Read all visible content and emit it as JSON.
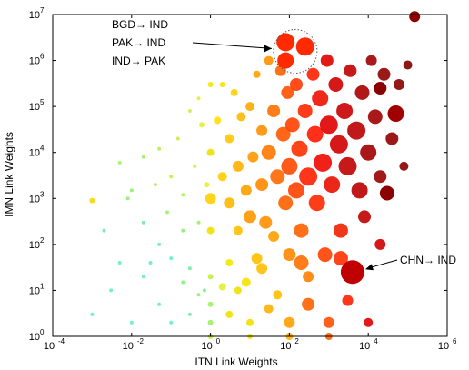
{
  "chart_data": {
    "type": "scatter",
    "xlabel": "ITN Link Weights",
    "ylabel": "IMN Link Weights",
    "xscale": "log",
    "yscale": "log",
    "xlim": [
      0.0001,
      1000000
    ],
    "ylim": [
      1,
      10000000
    ],
    "grid": false,
    "x_ticks": [
      {
        "exp": -4,
        "label": "10",
        "sup": "-4"
      },
      {
        "exp": -2,
        "label": "10",
        "sup": "-2"
      },
      {
        "exp": 0,
        "label": "10",
        "sup": "0"
      },
      {
        "exp": 2,
        "label": "10",
        "sup": "2"
      },
      {
        "exp": 4,
        "label": "10",
        "sup": "4"
      },
      {
        "exp": 6,
        "label": "10",
        "sup": "6"
      }
    ],
    "y_ticks": [
      {
        "exp": 0,
        "label": "10",
        "sup": "0"
      },
      {
        "exp": 1,
        "label": "10",
        "sup": "1"
      },
      {
        "exp": 2,
        "label": "10",
        "sup": "2"
      },
      {
        "exp": 3,
        "label": "10",
        "sup": "3"
      },
      {
        "exp": 4,
        "label": "10",
        "sup": "4"
      },
      {
        "exp": 5,
        "label": "10",
        "sup": "5"
      },
      {
        "exp": 6,
        "label": "10",
        "sup": "6"
      },
      {
        "exp": 7,
        "label": "10",
        "sup": "7"
      }
    ],
    "annotations": [
      {
        "label": "BGD→ IND",
        "x": 80,
        "y": 2500000
      },
      {
        "label": "PAK→ IND",
        "x": 250,
        "y": 2000000
      },
      {
        "label": "IND→ PAK",
        "x": 80,
        "y": 1000000
      },
      {
        "label": "CHN→ IND",
        "x": 4000,
        "y": 25
      }
    ],
    "highlighted_points": [
      {
        "x": 80,
        "y": 2500000,
        "size": 10,
        "color": "#ff2a00"
      },
      {
        "x": 250,
        "y": 2000000,
        "size": 10,
        "color": "#ff2a00"
      },
      {
        "x": 80,
        "y": 1000000,
        "size": 9,
        "color": "#ff2a00"
      },
      {
        "x": 4000,
        "y": 25,
        "size": 13,
        "color": "#c00000"
      },
      {
        "x": 150000,
        "y": 9000000,
        "size": 6,
        "color": "#8b0000"
      },
      {
        "x": 30000,
        "y": 1300,
        "size": 8,
        "color": "#8b0000"
      },
      {
        "x": 50000,
        "y": 70000,
        "size": 9,
        "color": "#a00000"
      },
      {
        "x": 20000,
        "y": 250000,
        "size": 7,
        "color": "#8b0000"
      }
    ],
    "scatter_points": [
      [
        0.001,
        900,
        3,
        "#ffd400"
      ],
      [
        0.005,
        6000,
        2,
        "#a8f060"
      ],
      [
        0.01,
        1500,
        2,
        "#90f070"
      ],
      [
        0.02,
        300,
        2,
        "#70f0a0"
      ],
      [
        0.02,
        8000,
        2,
        "#9ef060"
      ],
      [
        0.03,
        40,
        2,
        "#60f0c0"
      ],
      [
        0.04,
        2000,
        2,
        "#b0f050"
      ],
      [
        0.05,
        100,
        2,
        "#70f0a0"
      ],
      [
        0.05,
        12000,
        2,
        "#b0f050"
      ],
      [
        0.08,
        500,
        2,
        "#a0f060"
      ],
      [
        0.1,
        50,
        2,
        "#60f0c0"
      ],
      [
        0.1,
        3000,
        2,
        "#c0f040"
      ],
      [
        0.15,
        20000,
        2,
        "#c8f040"
      ],
      [
        0.2,
        200,
        2,
        "#90f070"
      ],
      [
        0.2,
        1200,
        2,
        "#b0f050"
      ],
      [
        0.3,
        80000,
        2,
        "#d0f040"
      ],
      [
        0.3,
        30,
        2,
        "#70f0a0"
      ],
      [
        0.4,
        5000,
        2,
        "#d0f040"
      ],
      [
        0.5,
        150000,
        2,
        "#e0f030"
      ],
      [
        0.5,
        300,
        2,
        "#a0f060"
      ],
      [
        0.6,
        40000,
        3,
        "#e0f030"
      ],
      [
        0.7,
        10,
        2,
        "#70f0a0"
      ],
      [
        0.8,
        2000,
        3,
        "#e8f030"
      ],
      [
        1,
        300000,
        3,
        "#f0e800"
      ],
      [
        1,
        1000,
        6,
        "#ffd000"
      ],
      [
        1,
        20,
        3,
        "#c0f040"
      ],
      [
        1,
        5,
        3,
        "#a0f060"
      ],
      [
        1,
        200,
        4,
        "#f0e000"
      ],
      [
        1,
        10000,
        4,
        "#f0e000"
      ],
      [
        1.5,
        50000,
        4,
        "#ffe000"
      ],
      [
        2,
        3000,
        5,
        "#ffcc00"
      ],
      [
        2,
        300000,
        3,
        "#f8e000"
      ],
      [
        3,
        800,
        6,
        "#ffb800"
      ],
      [
        3,
        20000,
        5,
        "#ffc800"
      ],
      [
        3,
        40,
        4,
        "#f0e800"
      ],
      [
        4,
        200000,
        4,
        "#ffd000"
      ],
      [
        5,
        5000,
        6,
        "#ffb000"
      ],
      [
        5,
        200,
        5,
        "#ffc000"
      ],
      [
        6,
        60000,
        5,
        "#ffb800"
      ],
      [
        8,
        1500,
        6,
        "#ffa000"
      ],
      [
        8,
        15,
        5,
        "#f8e000"
      ],
      [
        10,
        100000,
        5,
        "#ffa800"
      ],
      [
        10,
        400,
        7,
        "#ff9800"
      ],
      [
        12,
        8000,
        6,
        "#ff9800"
      ],
      [
        15,
        500000,
        4,
        "#ffa000"
      ],
      [
        15,
        50,
        6,
        "#ffc000"
      ],
      [
        20,
        2000,
        7,
        "#ff8800"
      ],
      [
        20,
        30000,
        6,
        "#ff9000"
      ],
      [
        25,
        300,
        7,
        "#ff9000"
      ],
      [
        30,
        1000000,
        5,
        "#ff9000"
      ],
      [
        30,
        10000,
        8,
        "#ff7800"
      ],
      [
        40,
        150,
        6,
        "#ffa000"
      ],
      [
        40,
        80000,
        7,
        "#ff7000"
      ],
      [
        50,
        3000,
        8,
        "#ff6800"
      ],
      [
        50,
        8,
        5,
        "#ffc000"
      ],
      [
        60,
        600000,
        6,
        "#ff6000"
      ],
      [
        70,
        25000,
        8,
        "#ff5800"
      ],
      [
        80,
        800,
        8,
        "#ff6000"
      ],
      [
        90,
        200000,
        7,
        "#ff5000"
      ],
      [
        100,
        5000,
        9,
        "#ff4800"
      ],
      [
        100,
        60,
        7,
        "#ff8800"
      ],
      [
        120,
        40000,
        8,
        "#ff4000"
      ],
      [
        150,
        1500,
        9,
        "#ff4000"
      ],
      [
        150,
        300000,
        7,
        "#ff3800"
      ],
      [
        180,
        12000,
        9,
        "#ff3000"
      ],
      [
        200,
        200,
        8,
        "#ff6000"
      ],
      [
        250,
        80000,
        8,
        "#ff2800"
      ],
      [
        300,
        3000,
        10,
        "#ff2000"
      ],
      [
        300,
        20,
        6,
        "#ff8000"
      ],
      [
        400,
        500000,
        7,
        "#ff2000"
      ],
      [
        450,
        25000,
        9,
        "#ff1800"
      ],
      [
        500,
        800,
        9,
        "#ff2800"
      ],
      [
        600,
        150000,
        9,
        "#f01000"
      ],
      [
        700,
        6000,
        10,
        "#f00800"
      ],
      [
        800,
        60,
        8,
        "#ff4000"
      ],
      [
        900,
        1000000,
        7,
        "#e00000"
      ],
      [
        1000,
        40000,
        10,
        "#e00000"
      ],
      [
        1200,
        2000,
        9,
        "#e81000"
      ],
      [
        1500,
        300000,
        8,
        "#d00000"
      ],
      [
        1800,
        15000,
        10,
        "#d00000"
      ],
      [
        2000,
        200,
        8,
        "#f02000"
      ],
      [
        2500,
        80000,
        9,
        "#c80000"
      ],
      [
        3000,
        5000,
        10,
        "#c00000"
      ],
      [
        3500,
        600000,
        7,
        "#c00000"
      ],
      [
        5000,
        30000,
        10,
        "#b80000"
      ],
      [
        6000,
        1500,
        9,
        "#b80000"
      ],
      [
        7000,
        200000,
        8,
        "#a80000"
      ],
      [
        8000,
        400,
        7,
        "#c00000"
      ],
      [
        10000,
        10000,
        9,
        "#a00000"
      ],
      [
        12000,
        1000000,
        6,
        "#a00000"
      ],
      [
        15000,
        60000,
        8,
        "#a00000"
      ],
      [
        20000,
        3000,
        7,
        "#980000"
      ],
      [
        25000,
        500000,
        7,
        "#900000"
      ],
      [
        40000,
        20000,
        7,
        "#900000"
      ],
      [
        60000,
        300000,
        6,
        "#880000"
      ],
      [
        80000,
        5000,
        5,
        "#880000"
      ],
      [
        100000,
        800000,
        5,
        "#800000"
      ],
      [
        1,
        2,
        3,
        "#a0f060"
      ],
      [
        10,
        2,
        4,
        "#f0e000"
      ],
      [
        100,
        2,
        6,
        "#ffa000"
      ],
      [
        1000,
        2,
        6,
        "#ff5000"
      ],
      [
        0.1,
        2,
        2,
        "#60f0c0"
      ],
      [
        0.01,
        2,
        2,
        "#60f0c0"
      ],
      [
        10000,
        2,
        5,
        "#e00000"
      ],
      [
        1,
        1,
        3,
        "#c0f040"
      ],
      [
        10,
        1,
        3,
        "#f0e000"
      ],
      [
        100,
        1,
        4,
        "#ffb000"
      ],
      [
        1000,
        1,
        4,
        "#ff6000"
      ],
      [
        0.3,
        3,
        2,
        "#70f0a0"
      ],
      [
        3,
        3,
        4,
        "#f0e000"
      ],
      [
        30,
        4,
        5,
        "#ffb000"
      ],
      [
        300,
        5,
        7,
        "#ff6000"
      ],
      [
        3000,
        6,
        6,
        "#ff2000"
      ],
      [
        0.05,
        5,
        2,
        "#60f0c0"
      ],
      [
        0.5,
        8,
        2,
        "#90f070"
      ],
      [
        5,
        10,
        4,
        "#f0e000"
      ],
      [
        0.02,
        20,
        2,
        "#60f0c0"
      ],
      [
        0.2,
        15,
        2,
        "#80f080"
      ],
      [
        2,
        12,
        4,
        "#e0f030"
      ],
      [
        20,
        30,
        6,
        "#ffc000"
      ],
      [
        200,
        40,
        8,
        "#ff7000"
      ],
      [
        2000,
        50,
        8,
        "#ff3000"
      ],
      [
        20000,
        100,
        6,
        "#d00000"
      ],
      [
        0.001,
        3,
        2,
        "#60f0c0"
      ],
      [
        0.003,
        10,
        2,
        "#60f0c0"
      ],
      [
        0.005,
        40,
        2,
        "#60f0c0"
      ],
      [
        0.002,
        200,
        2,
        "#70f0a0"
      ],
      [
        0.008,
        1000,
        2,
        "#90f070"
      ]
    ]
  }
}
